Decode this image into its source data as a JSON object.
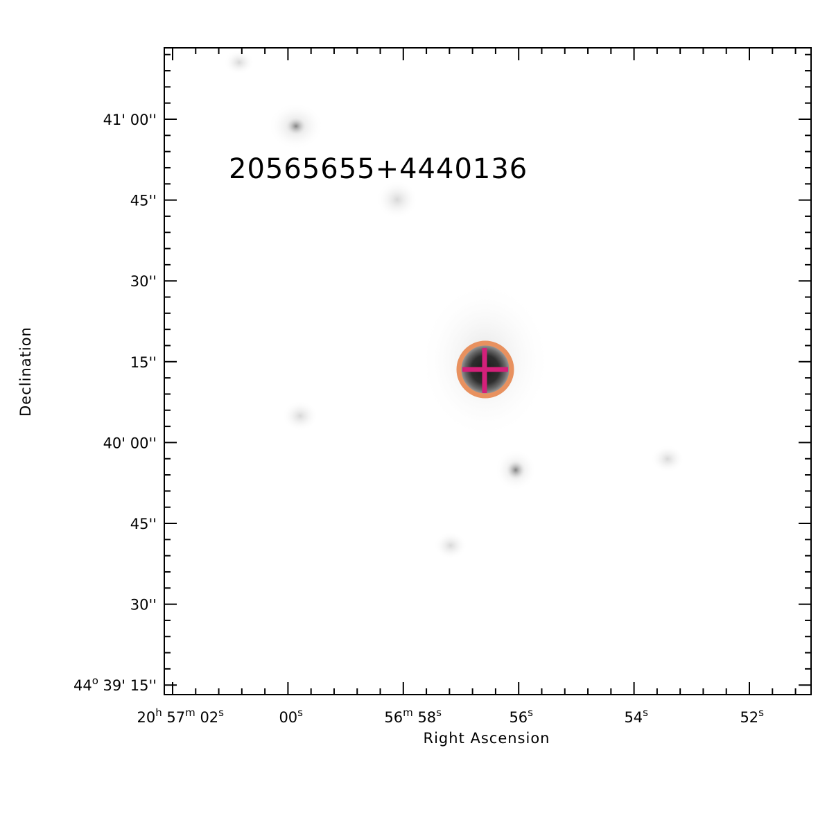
{
  "image": {
    "object_label": "20565655+4440136",
    "object_label_color": "#1e5a40",
    "aperture_color": "#e8915f",
    "marker_color": "#d4207a"
  },
  "axes": {
    "x_title": "Right Ascension",
    "y_title": "Declination",
    "x_ticks": [
      {
        "parts": [
          [
            "20",
            ""
          ],
          [
            "h",
            "sup"
          ],
          [
            " 57",
            ""
          ],
          [
            "m",
            "sup"
          ],
          [
            " 02",
            ""
          ],
          [
            "s",
            "sup"
          ]
        ]
      },
      {
        "parts": [
          [
            "00",
            ""
          ],
          [
            "s",
            "sup"
          ]
        ]
      },
      {
        "parts": [
          [
            "56",
            ""
          ],
          [
            "m",
            "sup"
          ],
          [
            " 58",
            ""
          ],
          [
            "s",
            "sup"
          ]
        ]
      },
      {
        "parts": [
          [
            "56",
            ""
          ],
          [
            "s",
            "sup"
          ]
        ]
      },
      {
        "parts": [
          [
            "54",
            ""
          ],
          [
            "s",
            "sup"
          ]
        ]
      },
      {
        "parts": [
          [
            "52",
            ""
          ],
          [
            "s",
            "sup"
          ]
        ]
      }
    ],
    "y_ticks": [
      {
        "parts": [
          [
            "41' 00''",
            ""
          ]
        ]
      },
      {
        "parts": [
          [
            "45''",
            ""
          ]
        ]
      },
      {
        "parts": [
          [
            "30''",
            ""
          ]
        ]
      },
      {
        "parts": [
          [
            "15''",
            ""
          ]
        ]
      },
      {
        "parts": [
          [
            "40' 00''",
            ""
          ]
        ]
      },
      {
        "parts": [
          [
            "45''",
            ""
          ]
        ]
      },
      {
        "parts": [
          [
            "30''",
            ""
          ]
        ]
      },
      {
        "parts": [
          [
            "44",
            ""
          ],
          [
            "o",
            "sup"
          ],
          [
            " 39' 15''",
            ""
          ]
        ]
      }
    ]
  }
}
